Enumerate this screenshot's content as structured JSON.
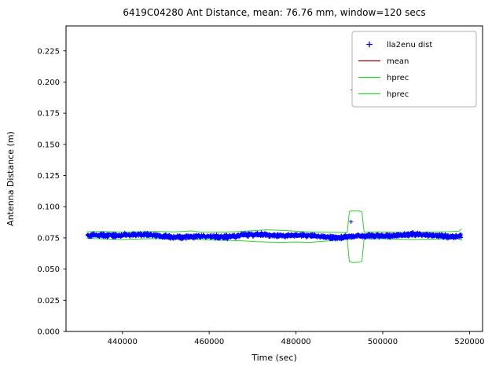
{
  "chart_data": {
    "type": "scatter",
    "title": "6419C04280 Ant Distance, mean: 76.76 mm, window=120 secs",
    "xlabel": "Time (sec)",
    "ylabel": "Antenna Distance (m)",
    "xlim": [
      427000,
      523000
    ],
    "ylim": [
      0.0,
      0.245
    ],
    "xticks": [
      440000,
      460000,
      480000,
      500000,
      520000
    ],
    "yticks": [
      0.0,
      0.025,
      0.05,
      0.075,
      0.1,
      0.125,
      0.15,
      0.175,
      0.2,
      0.225
    ],
    "ytick_decimals": 3,
    "grid": false,
    "colors": {
      "scatter": "#0000ff",
      "mean": "#8b0000",
      "hprec": "#32cd32",
      "spine": "#000000",
      "legend_border": "#b0b0b0"
    },
    "legend": {
      "position": "upper right",
      "entries": [
        {
          "label": "lla2enu dist",
          "type": "marker",
          "color": "#0000ff"
        },
        {
          "label": "mean",
          "type": "line",
          "color": "#8b0000"
        },
        {
          "label": "hprec",
          "type": "line",
          "color": "#32cd32"
        },
        {
          "label": "hprec",
          "type": "line",
          "color": "#32cd32"
        }
      ]
    },
    "series": {
      "band": {
        "name": "lla2enu dist",
        "x_start": 431900,
        "x_end": 518100,
        "n_points": 1700,
        "y_center": 0.0766,
        "wander_amp1": 0.0008,
        "wander_amp2": 0.0005,
        "noise_amp": 0.0016,
        "seed": 42
      },
      "outliers": [
        [
          492700,
          0.088
        ],
        [
          493100,
          0.1937
        ],
        [
          493900,
          0.203
        ]
      ],
      "mean_line": {
        "name": "mean",
        "x_start": 431800,
        "x_end": 518200,
        "y": 0.0768
      },
      "hprec_upper": [
        [
          431800,
          0.08
        ],
        [
          436000,
          0.0802
        ],
        [
          440000,
          0.0797
        ],
        [
          444000,
          0.08
        ],
        [
          448000,
          0.0802
        ],
        [
          452000,
          0.0798
        ],
        [
          456000,
          0.0806
        ],
        [
          458000,
          0.0797
        ],
        [
          462000,
          0.0796
        ],
        [
          466000,
          0.08
        ],
        [
          470000,
          0.0808
        ],
        [
          473000,
          0.0815
        ],
        [
          476000,
          0.0812
        ],
        [
          479000,
          0.0806
        ],
        [
          482000,
          0.08
        ],
        [
          485000,
          0.0797
        ],
        [
          488000,
          0.0795
        ],
        [
          491800,
          0.0793
        ],
        [
          492300,
          0.0962
        ],
        [
          493000,
          0.0968
        ],
        [
          494500,
          0.0966
        ],
        [
          495200,
          0.0958
        ],
        [
          495700,
          0.0795
        ],
        [
          499000,
          0.0798
        ],
        [
          503000,
          0.0795
        ],
        [
          507000,
          0.0794
        ],
        [
          511000,
          0.0797
        ],
        [
          515000,
          0.08
        ],
        [
          517600,
          0.0805
        ],
        [
          518200,
          0.0822
        ]
      ],
      "hprec_lower": [
        [
          431800,
          0.0746
        ],
        [
          436000,
          0.0742
        ],
        [
          440000,
          0.0737
        ],
        [
          444000,
          0.0742
        ],
        [
          448000,
          0.0745
        ],
        [
          452000,
          0.0742
        ],
        [
          456000,
          0.074
        ],
        [
          460000,
          0.0734
        ],
        [
          464000,
          0.073
        ],
        [
          468000,
          0.0726
        ],
        [
          471000,
          0.072
        ],
        [
          474000,
          0.0717
        ],
        [
          477000,
          0.0715
        ],
        [
          480000,
          0.0718
        ],
        [
          483000,
          0.0714
        ],
        [
          486000,
          0.0722
        ],
        [
          489000,
          0.073
        ],
        [
          491800,
          0.0738
        ],
        [
          492300,
          0.056
        ],
        [
          493000,
          0.0553
        ],
        [
          494500,
          0.0555
        ],
        [
          495200,
          0.0562
        ],
        [
          495700,
          0.0742
        ],
        [
          499000,
          0.0744
        ],
        [
          503000,
          0.074
        ],
        [
          507000,
          0.0737
        ],
        [
          511000,
          0.074
        ],
        [
          515000,
          0.0743
        ],
        [
          517600,
          0.0742
        ],
        [
          518200,
          0.073
        ]
      ]
    }
  }
}
